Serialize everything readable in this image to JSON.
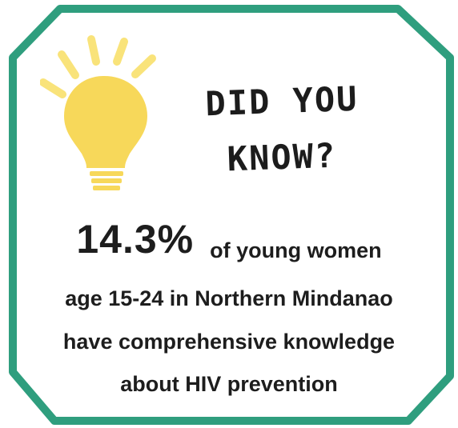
{
  "heading": {
    "line1": "DID YOU",
    "line2": "KNOW?"
  },
  "stat": {
    "value": "14.3%",
    "line1_rest": "of young women",
    "line2": "age 15-24 in Northern Mindanao",
    "line3": "have comprehensive knowledge",
    "line4": "about HIV prevention"
  },
  "colors": {
    "frame": "#2f9e7e",
    "bulb": "#f7d85a",
    "bulb_rays": "#f9e37a",
    "text": "#1d1d1d"
  },
  "icons": {
    "bulb": "lightbulb-icon"
  }
}
